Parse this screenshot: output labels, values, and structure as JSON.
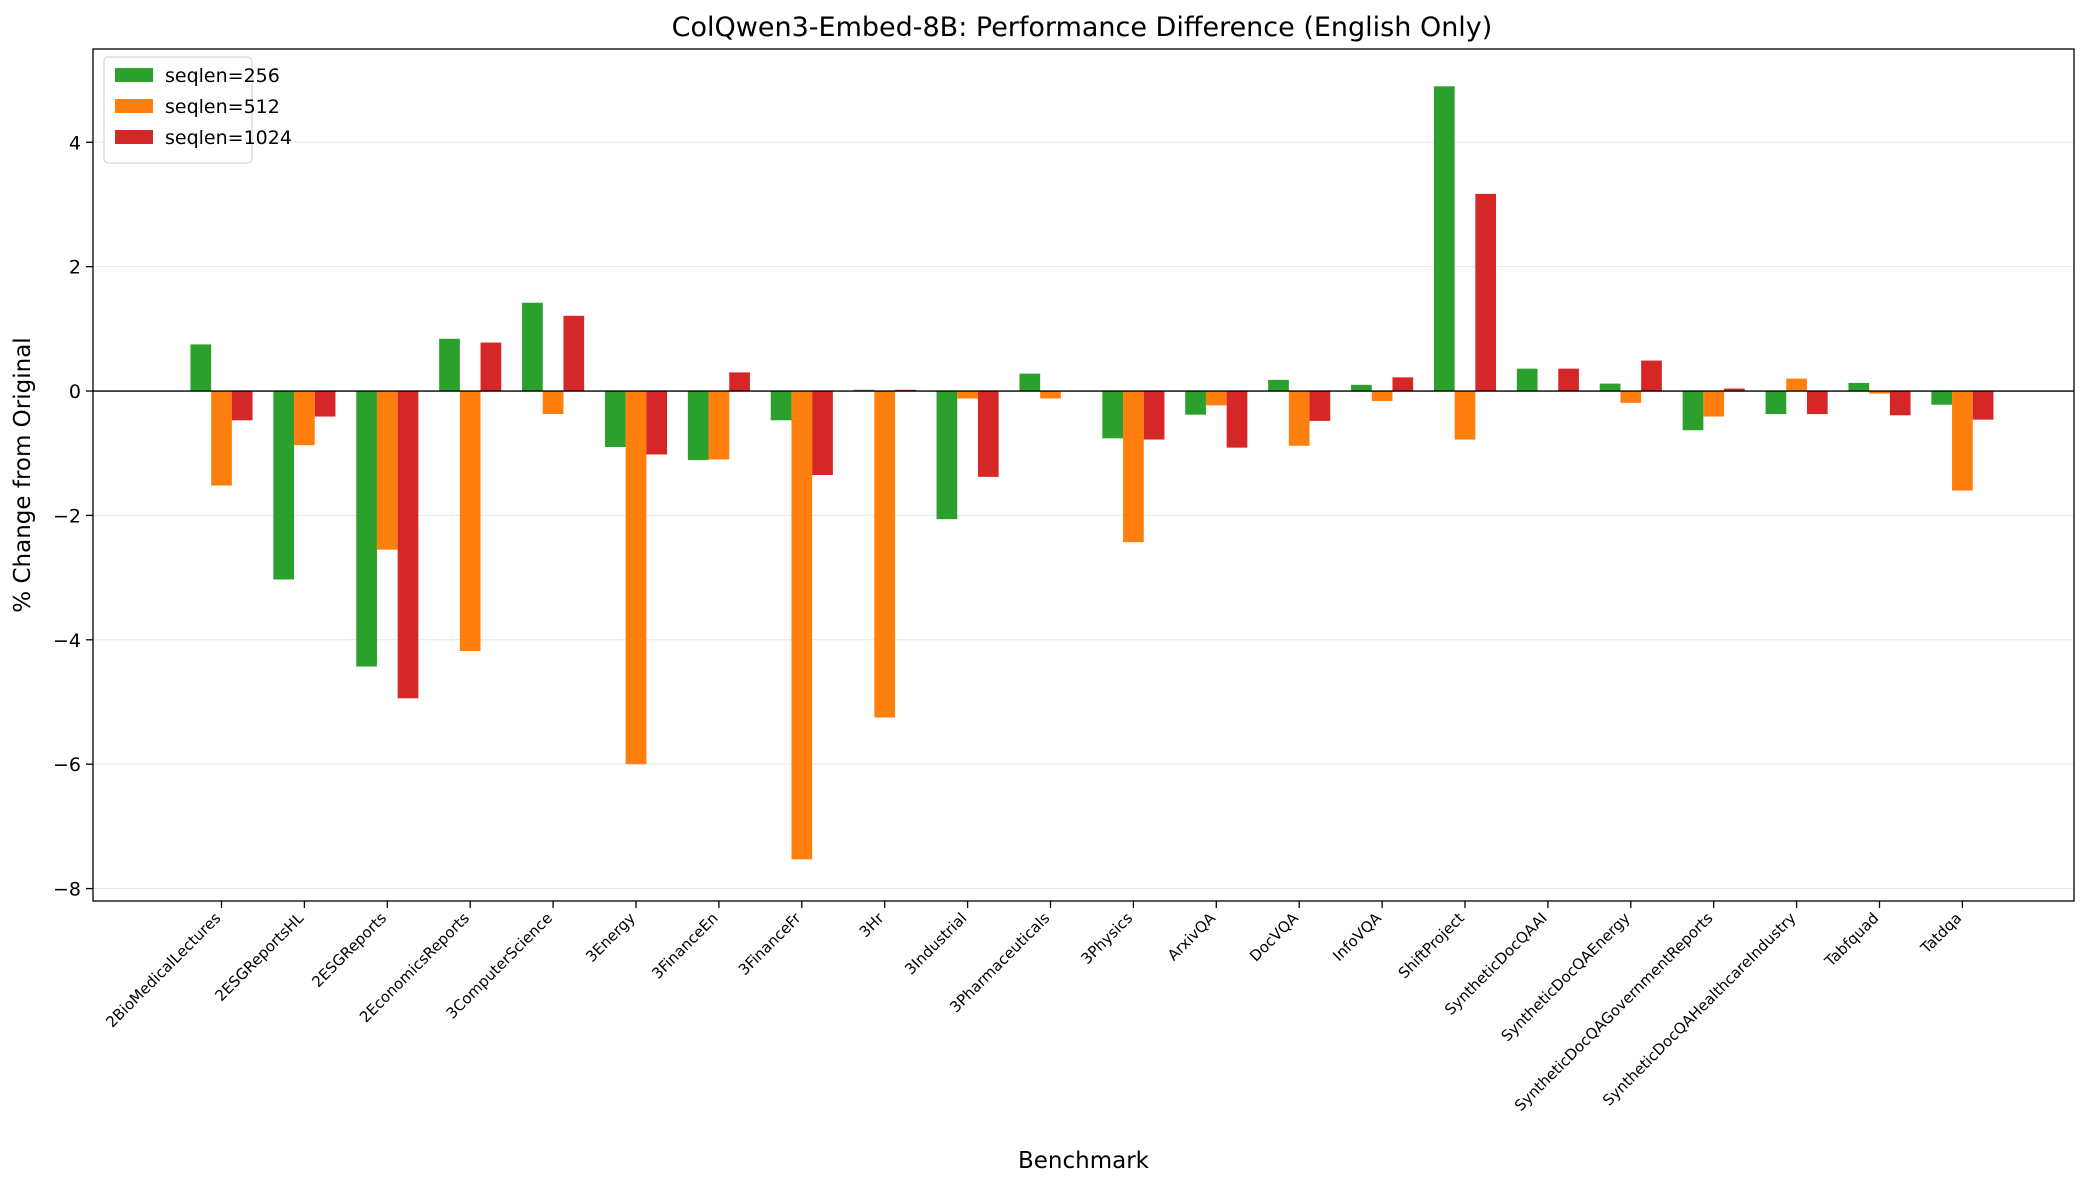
{
  "chart_data": {
    "type": "bar",
    "title": "ColQwen3-Embed-8B: Performance Difference (English Only)",
    "xlabel": "Benchmark",
    "ylabel": "% Change from Original",
    "ylim": [
      -8.2,
      5.5
    ],
    "yticks": [
      -8,
      -6,
      -4,
      -2,
      0,
      2,
      4
    ],
    "ytick_labels": [
      "−8",
      "−6",
      "−4",
      "−2",
      "0",
      "2",
      "4"
    ],
    "grid": true,
    "legend_position": "top-left",
    "categories": [
      "2BioMedicalLectures",
      "2ESGReportsHL",
      "2ESGReports",
      "2EconomicsReports",
      "3ComputerScience",
      "3Energy",
      "3FinanceEn",
      "3FinanceFr",
      "3Hr",
      "3Industrial",
      "3Pharmaceuticals",
      "3Physics",
      "ArxivQA",
      "DocVQA",
      "InfoVQA",
      "ShiftProject",
      "SyntheticDocQAAI",
      "SyntheticDocQAEnergy",
      "SyntheticDocQAGovernmentReports",
      "SyntheticDocQAHealthcareIndustry",
      "Tabfquad",
      "Tatdqa"
    ],
    "series": [
      {
        "name": "seqlen=256",
        "color": "#2ca02c",
        "values": [
          0.75,
          -3.03,
          -4.43,
          0.84,
          1.42,
          -0.9,
          -1.11,
          -0.47,
          0.02,
          -2.06,
          0.28,
          -0.76,
          -0.38,
          0.18,
          0.1,
          4.9,
          0.36,
          0.12,
          -0.63,
          -0.37,
          0.13,
          -0.22
        ]
      },
      {
        "name": "seqlen=512",
        "color": "#ff7f0e",
        "values": [
          -1.52,
          -0.87,
          -2.55,
          -4.18,
          -0.37,
          -6.0,
          -1.1,
          -7.53,
          -5.25,
          -0.12,
          -0.12,
          -2.43,
          -0.23,
          -0.88,
          -0.16,
          -0.78,
          0.0,
          -0.19,
          -0.41,
          0.2,
          -0.04,
          -1.6
        ]
      },
      {
        "name": "seqlen=1024",
        "color": "#d62728",
        "values": [
          -0.47,
          -0.41,
          -4.94,
          0.78,
          1.21,
          -1.02,
          0.3,
          -1.35,
          0.02,
          -1.38,
          0.0,
          -0.78,
          -0.91,
          -0.48,
          0.22,
          3.17,
          0.36,
          0.49,
          0.04,
          -0.37,
          -0.39,
          -0.46
        ]
      }
    ]
  }
}
